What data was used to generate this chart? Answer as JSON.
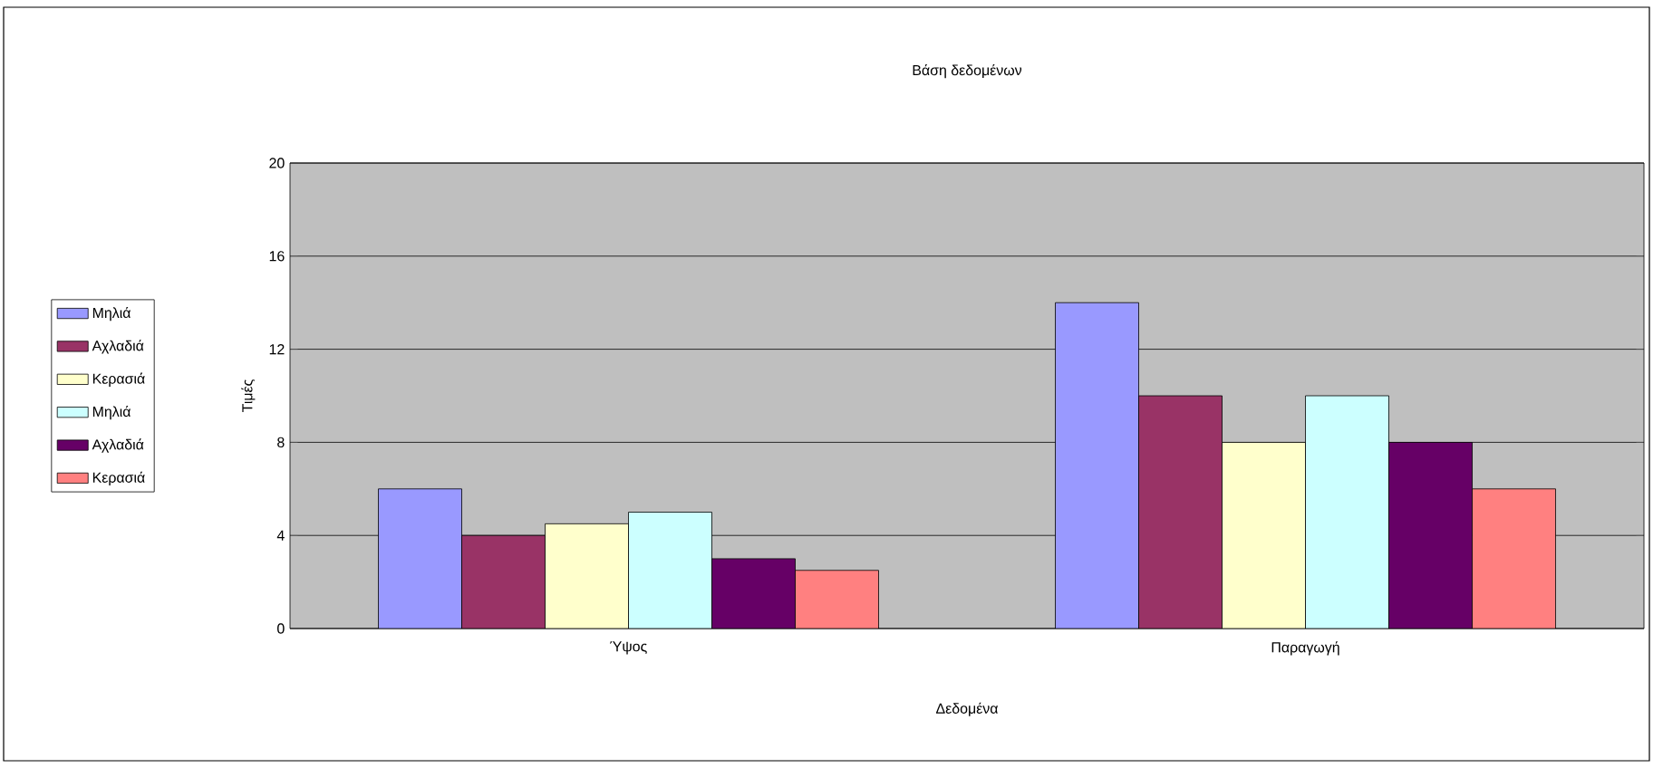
{
  "chart_data": {
    "type": "bar",
    "title": "Βάση δεδομένων",
    "xlabel": "Δεδομένα",
    "ylabel": "Τιμές",
    "categories": [
      "Ύψος",
      "Παραγωγή"
    ],
    "series": [
      {
        "name": "Μηλιά",
        "color": "#9999ff",
        "values": [
          6,
          14
        ]
      },
      {
        "name": "Αχλαδιά",
        "color": "#993366",
        "values": [
          4,
          10
        ]
      },
      {
        "name": "Κερασιά",
        "color": "#ffffcc",
        "values": [
          4.5,
          8
        ]
      },
      {
        "name": "Μηλιά",
        "color": "#ccffff",
        "values": [
          5,
          10
        ]
      },
      {
        "name": "Αχλαδιά",
        "color": "#660066",
        "values": [
          3,
          8
        ]
      },
      {
        "name": "Κερασιά",
        "color": "#ff8080",
        "values": [
          2.5,
          6
        ]
      }
    ],
    "ylim": [
      0,
      20
    ],
    "yticks": [
      0,
      4,
      8,
      12,
      16,
      20
    ],
    "grid": "y",
    "legend": "left"
  }
}
